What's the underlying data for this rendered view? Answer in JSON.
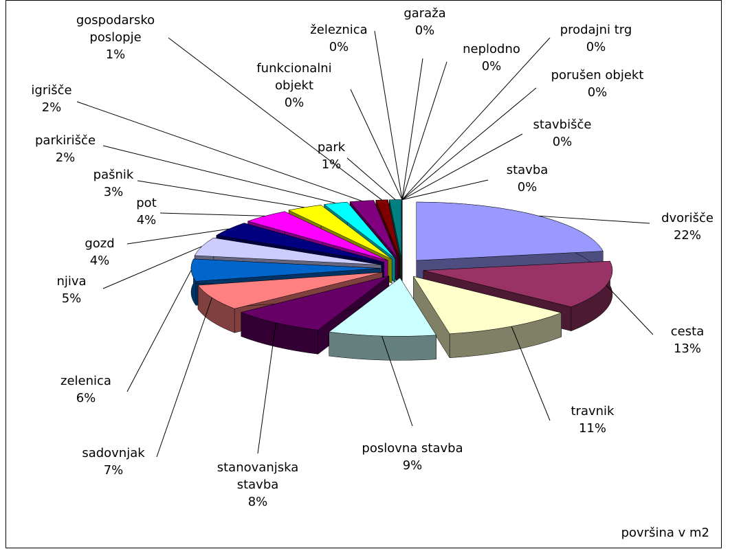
{
  "chart_data": {
    "type": "pie",
    "series_name": "površina v m2",
    "categories": [
      "dvorišče",
      "cesta",
      "travnik",
      "poslovna stavba",
      "stanovanjska stavba",
      "sadovnjak",
      "zelenica",
      "njiva",
      "gozd",
      "pot",
      "pašnik",
      "parkirišče",
      "igrišče",
      "gospodarsko poslopje",
      "park",
      "funkcionalni objekt",
      "železnica",
      "garaža",
      "neplodno",
      "prodajni trg",
      "porušen objekt",
      "stavbišče",
      "stavba"
    ],
    "values": [
      22,
      13,
      11,
      9,
      8,
      7,
      6,
      5,
      4,
      4,
      3,
      2,
      2,
      1,
      1,
      0,
      0,
      0,
      0,
      0,
      0,
      0,
      0
    ],
    "value_labels": [
      "22%",
      "13%",
      "11%",
      "9%",
      "8%",
      "7%",
      "6%",
      "5%",
      "4%",
      "4%",
      "3%",
      "2%",
      "2%",
      "1%",
      "1%",
      "0%",
      "0%",
      "0%",
      "0%",
      "0%",
      "0%",
      "0%",
      "0%"
    ],
    "colors": [
      "#9999ff",
      "#993366",
      "#ffffcc",
      "#ccffff",
      "#660066",
      "#ff8080",
      "#0066cc",
      "#ccccff",
      "#000080",
      "#ff00ff",
      "#ffff00",
      "#00ffff",
      "#800080",
      "#800000",
      "#008080",
      "#0000ff",
      "#00ccff",
      "#ccffff",
      "#ccffcc",
      "#ffff99",
      "#99ccff",
      "#ff99cc",
      "#cc99ff"
    ]
  }
}
